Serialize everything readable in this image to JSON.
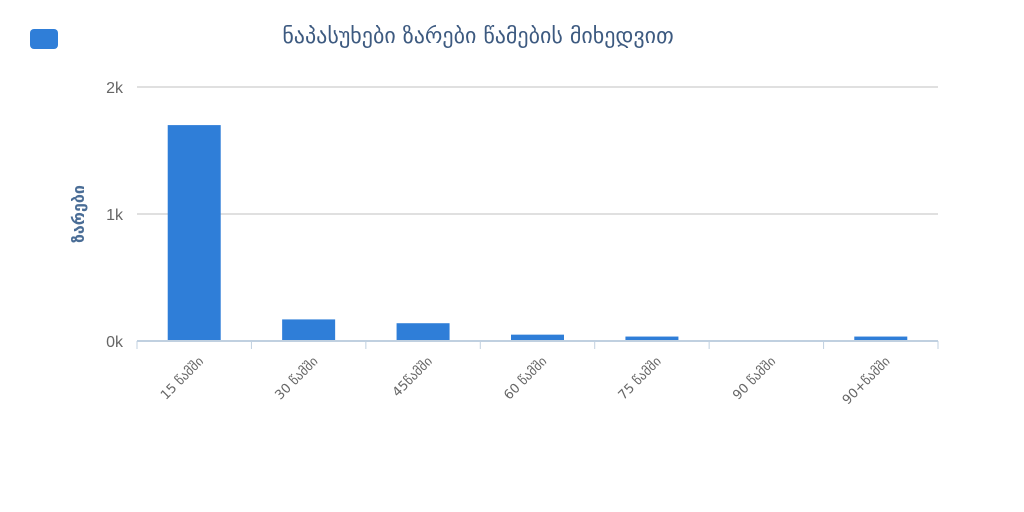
{
  "chart_data": {
    "type": "bar",
    "title": "ნაპასუხები ზარები წამების მიხედვით",
    "ylabel": "ზარები",
    "xlabel": "",
    "categories": [
      "15 წამში",
      "30 წამში",
      "45წამში",
      "60 წამში",
      "75 წამში",
      "90 წამში",
      "90+წამში"
    ],
    "series": [
      {
        "name": "",
        "color": "#2f7ed8",
        "values": [
          1700,
          170,
          140,
          50,
          35,
          5,
          35
        ]
      }
    ],
    "ylim": [
      0,
      2000
    ],
    "yticks": [
      {
        "value": 0,
        "label": "0k"
      },
      {
        "value": 1000,
        "label": "1k"
      },
      {
        "value": 2000,
        "label": "2k"
      }
    ],
    "grid": true,
    "legend": "top-left",
    "colors": {
      "bar": "#2f7ed8",
      "grid": "#c0c0c0",
      "title": "#3d5a80",
      "axis_label": "#4a6d96",
      "tick": "#666666",
      "axis_line": "#c0d0e0"
    }
  }
}
